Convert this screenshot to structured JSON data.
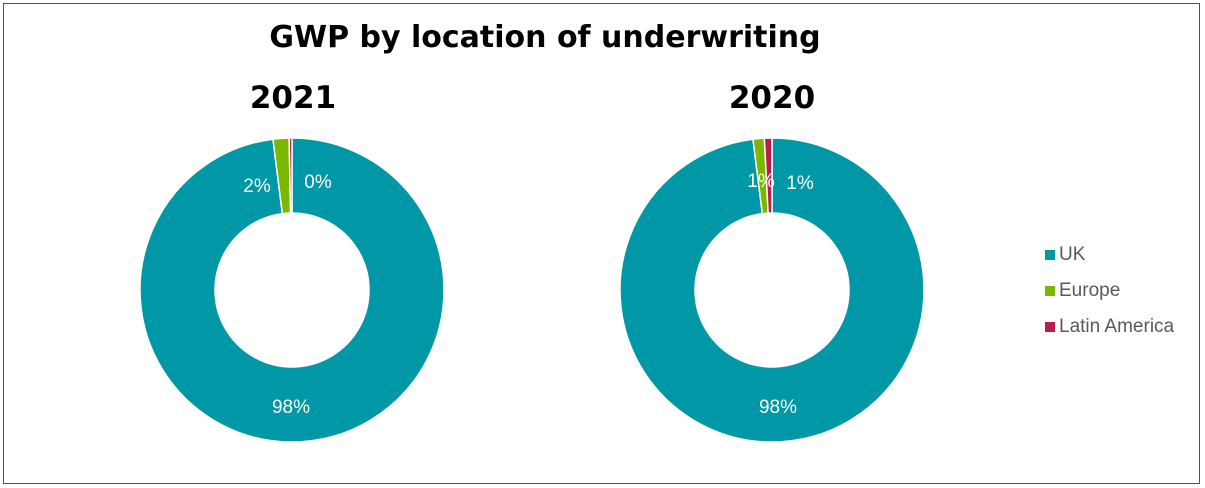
{
  "chart_data": {
    "type": "pie",
    "variant": "donut",
    "title": "GWP by location of underwriting",
    "legend_position": "right",
    "series_names": [
      "UK",
      "Europe",
      "Latin America"
    ],
    "colors": {
      "UK": "#0097a7",
      "Europe": "#7ab800",
      "Latin America": "#b51f4b"
    },
    "charts": [
      {
        "subtitle": "2021",
        "slices": [
          {
            "label": "UK",
            "value": 98,
            "display": "98%"
          },
          {
            "label": "Europe",
            "value": 1.7,
            "display": "2%"
          },
          {
            "label": "Latin America",
            "value": 0.3,
            "display": "0%"
          }
        ]
      },
      {
        "subtitle": "2020",
        "slices": [
          {
            "label": "UK",
            "value": 98,
            "display": "98%"
          },
          {
            "label": "Europe",
            "value": 1.2,
            "display": "1%"
          },
          {
            "label": "Latin America",
            "value": 0.8,
            "display": "1%"
          }
        ]
      }
    ]
  }
}
